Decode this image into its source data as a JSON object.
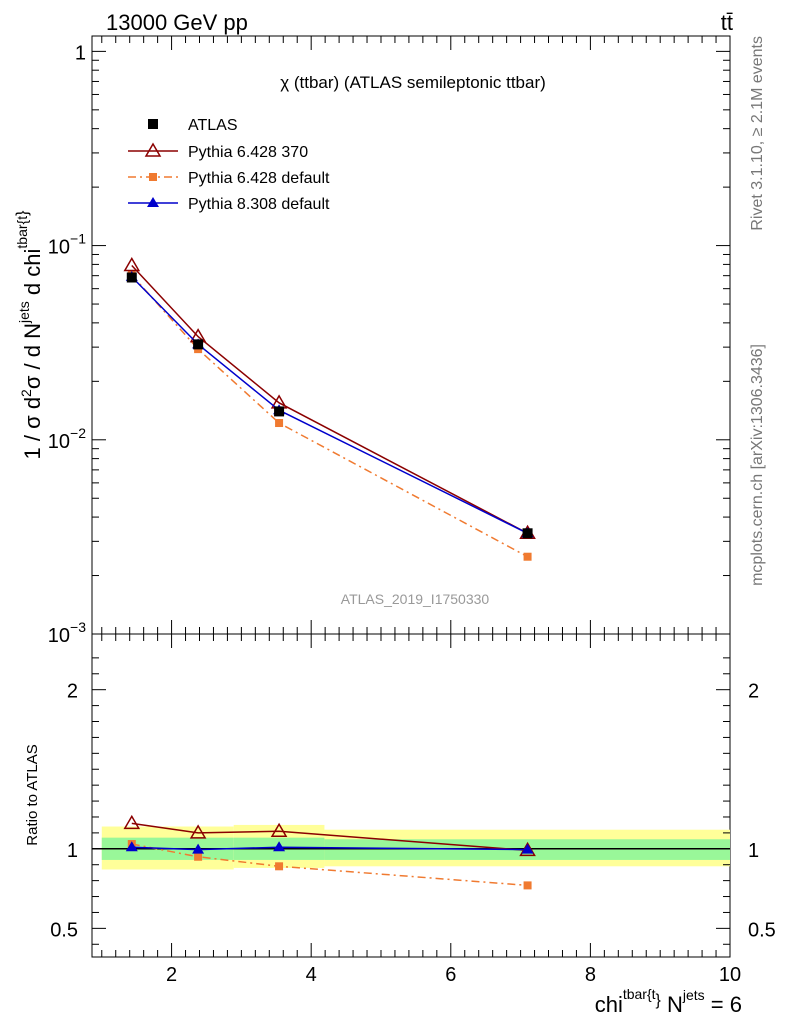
{
  "header": {
    "left": "13000 GeV pp",
    "right": "tt̄"
  },
  "side_labels": {
    "rivet": "Rivet 3.1.10, ≥ 2.1M events",
    "mcplots": "mcplots.cern.ch [arXiv:1306.3436]"
  },
  "chart_data": {
    "type": "line",
    "title": "χ (ttbar) (ATLAS semileptonic ttbar)",
    "watermark": "ATLAS_2019_I1750330",
    "xlabel": {
      "main": "chi",
      "sup1": "tbar{t",
      "brace": "}",
      "n": " N",
      "sup2": "jets",
      "tail": " = 6"
    },
    "ylabel": {
      "a": "1 / σ d",
      "sup": "2",
      "b": "σ / d N",
      "sup2": "jets",
      "c": " d chi",
      "sup3": "tbar{t",
      "brace": "}"
    },
    "ratio_ylabel": "Ratio to ATLAS",
    "xlim": [
      0.86,
      10.0
    ],
    "x_ticks": [
      2,
      4,
      6,
      8,
      10
    ],
    "ylim_top": [
      0.001,
      1.2
    ],
    "y_ticks_top": [
      {
        "value": 1,
        "base": "1",
        "exp": ""
      },
      {
        "value": 0.1,
        "base": "10",
        "exp": "−1"
      },
      {
        "value": 0.01,
        "base": "10",
        "exp": "−2"
      },
      {
        "value": 0.001,
        "base": "10",
        "exp": "−3"
      }
    ],
    "log_y_top": true,
    "ylim_ratio": [
      0.32,
      2.35
    ],
    "y_ticks_ratio": [
      0.5,
      1,
      2
    ],
    "y_tick_labels_ratio": [
      "0.5",
      "1",
      "2"
    ],
    "bins": [
      {
        "lo": 1.0,
        "hi": 1.87
      },
      {
        "lo": 1.87,
        "hi": 2.89
      },
      {
        "lo": 2.89,
        "hi": 4.19
      },
      {
        "lo": 4.19,
        "hi": 10.0
      }
    ],
    "x": [
      1.43,
      2.38,
      3.54,
      7.1
    ],
    "band_green": [
      [
        0.93,
        1.07
      ],
      [
        0.93,
        1.07
      ],
      [
        0.93,
        1.07
      ],
      [
        0.93,
        1.06
      ]
    ],
    "band_yellow": [
      [
        0.87,
        1.14
      ],
      [
        0.87,
        1.14
      ],
      [
        0.88,
        1.15
      ],
      [
        0.89,
        1.12
      ]
    ],
    "series": [
      {
        "name": "ATLAS",
        "style": "data",
        "color": "#000000",
        "marker": "square",
        "values": [
          0.0685,
          0.031,
          0.014,
          0.0033
        ],
        "ratio": [
          1.0,
          1.0,
          1.0,
          1.0
        ]
      },
      {
        "name": "Pythia 6.428 370",
        "style": "solid",
        "color": "#8b0000",
        "marker": "triangle-open",
        "values": [
          0.079,
          0.034,
          0.0155,
          0.0033
        ],
        "ratio": [
          1.16,
          1.1,
          1.11,
          0.99
        ]
      },
      {
        "name": "Pythia 6.428 default",
        "style": "dashdot",
        "color": "#f07a30",
        "marker": "square-small",
        "values": [
          0.0705,
          0.0293,
          0.0122,
          0.0025
        ],
        "ratio": [
          1.03,
          0.95,
          0.89,
          0.77
        ]
      },
      {
        "name": "Pythia 8.308 default",
        "style": "solid",
        "color": "#0000cc",
        "marker": "triangle-filled",
        "values": [
          0.069,
          0.031,
          0.0142,
          0.0033
        ],
        "ratio": [
          1.01,
          0.995,
          1.01,
          0.995
        ]
      }
    ]
  }
}
